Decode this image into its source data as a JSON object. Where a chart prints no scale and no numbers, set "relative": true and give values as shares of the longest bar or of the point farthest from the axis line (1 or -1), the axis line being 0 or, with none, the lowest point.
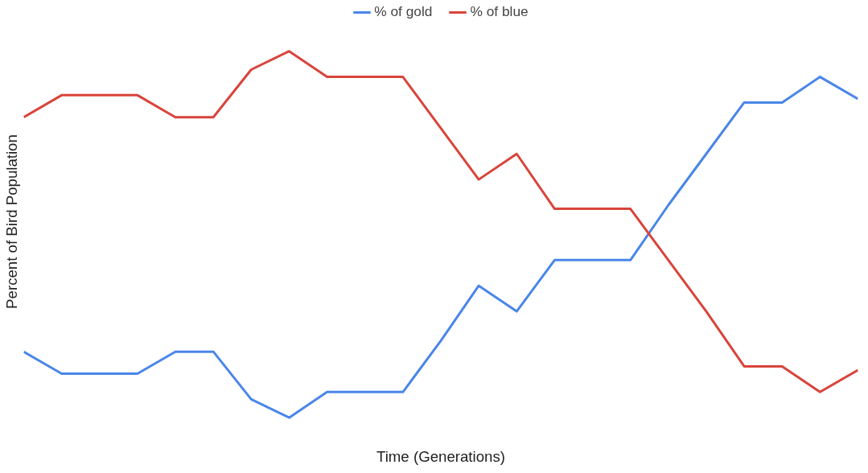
{
  "chart_data": {
    "type": "line",
    "relative": true,
    "xlabel": "Time (Generations)",
    "ylabel": "Percent of Bird Population",
    "legend": "top",
    "categories": [
      null,
      null,
      null,
      null,
      null,
      null,
      null,
      null,
      null,
      null,
      null,
      null,
      null,
      null,
      null,
      null,
      null,
      null,
      null,
      null,
      null,
      null,
      null
    ],
    "series": [
      {
        "name": "% of gold",
        "color": "#4a86e8",
        "values": [
          0.18,
          0.12,
          0.12,
          0.12,
          0.18,
          0.18,
          0.05,
          0,
          0.07,
          0.07,
          0.07,
          0.21,
          0.36,
          0.29,
          0.43,
          0.43,
          0.43,
          0.58,
          0.72,
          0.86,
          0.86,
          0.93,
          0.87
        ]
      },
      {
        "name": "% of blue",
        "color": "#d9443a",
        "values": [
          0.82,
          0.88,
          0.88,
          0.88,
          0.82,
          0.82,
          0.95,
          1,
          0.93,
          0.93,
          0.93,
          0.79,
          0.65,
          0.72,
          0.57,
          0.57,
          0.57,
          0.43,
          0.29,
          0.14,
          0.14,
          0.07,
          0.13
        ]
      }
    ]
  }
}
